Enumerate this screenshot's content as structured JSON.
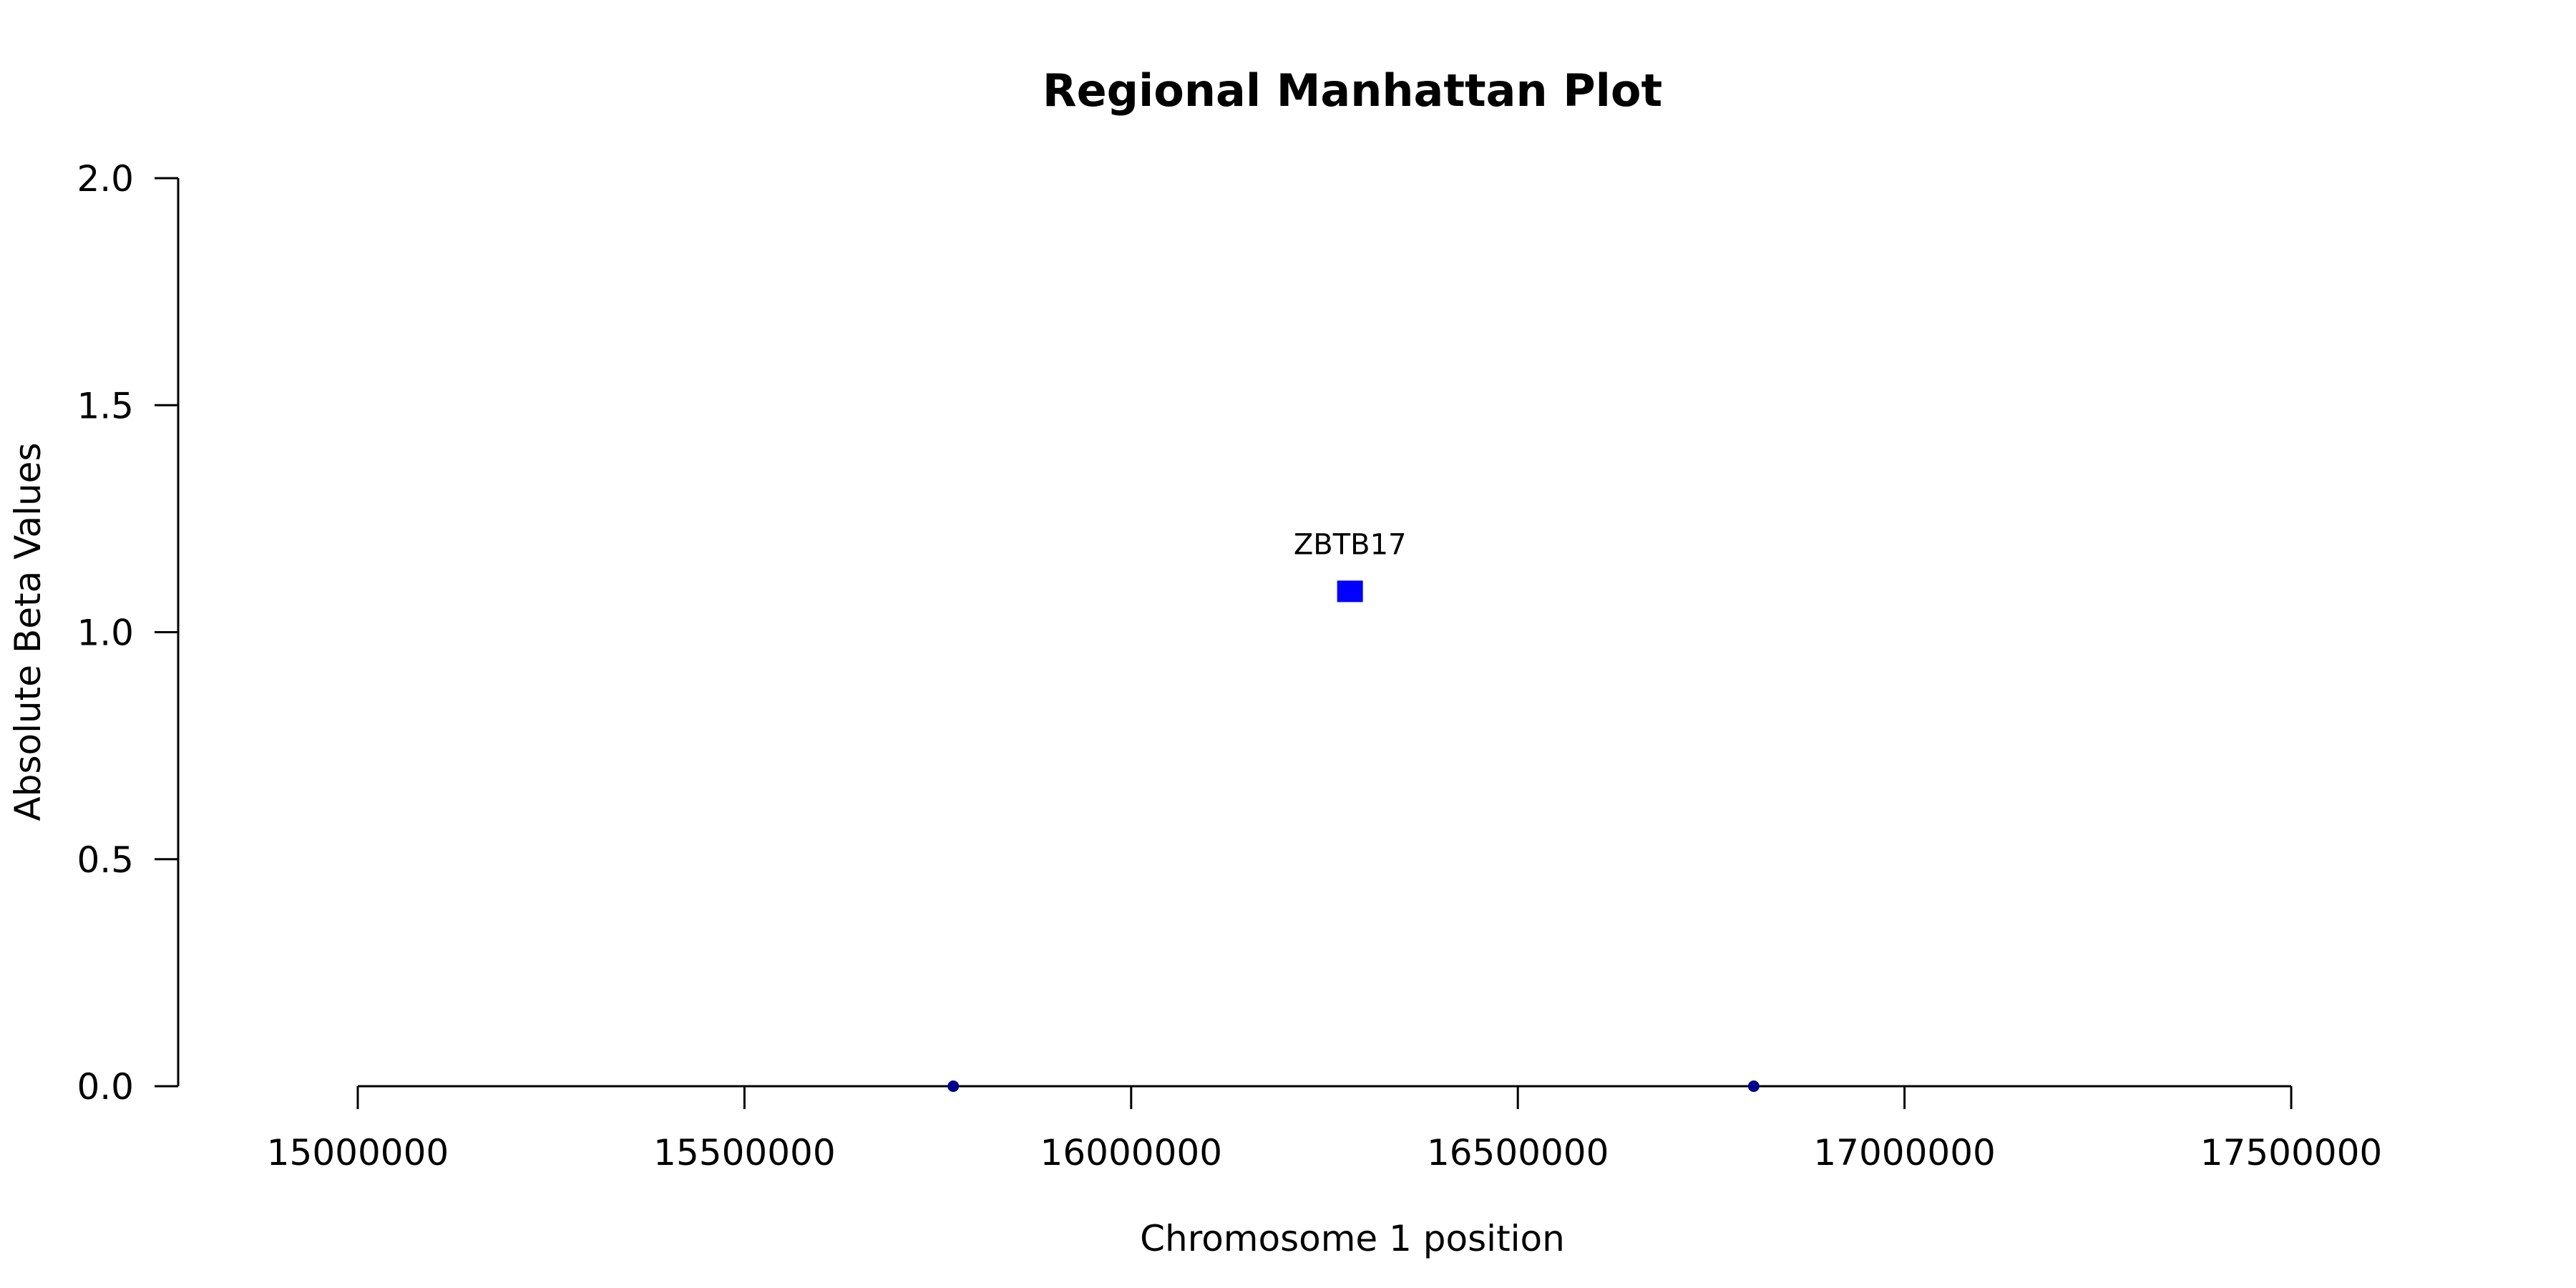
{
  "chart_data": {
    "type": "scatter",
    "title": "Regional Manhattan Plot",
    "xlabel": "Chromosome 1 position",
    "ylabel": "Absolute Beta Values",
    "xlim": [
      15000000,
      17500000
    ],
    "ylim": [
      0,
      2
    ],
    "x_ticks": [
      15000000,
      15500000,
      16000000,
      16500000,
      17000000,
      17500000
    ],
    "y_ticks": [
      "0.0",
      "0.5",
      "1.0",
      "1.5",
      "2.0"
    ],
    "grid": false,
    "points": [
      {
        "x": 15770000,
        "y": 0.0,
        "marker": "circle",
        "color": "#00008B"
      },
      {
        "x": 16283000,
        "y": 1.09,
        "marker": "square",
        "color": "#0000FF",
        "label": "ZBTB17"
      },
      {
        "x": 16805000,
        "y": 0.0,
        "marker": "circle",
        "color": "#00008B"
      }
    ]
  }
}
